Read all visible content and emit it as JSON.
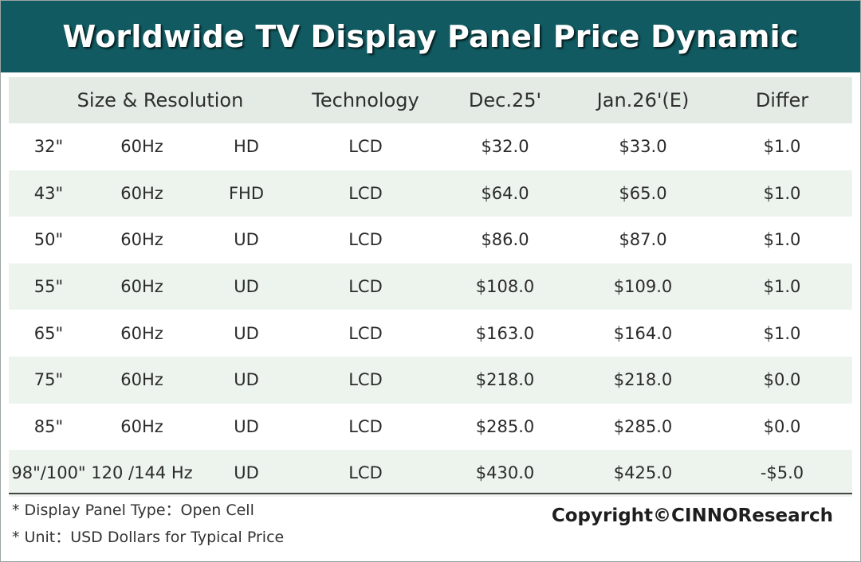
{
  "title": "Worldwide TV Display Panel Price Dynamic",
  "colors": {
    "title_bg": "#115a61",
    "header_bg": "#e3ebe4",
    "stripe_bg": "#edf3ed"
  },
  "chart_data": {
    "type": "table",
    "title": "Worldwide TV Display Panel Price Dynamic",
    "columns": [
      "Size & Resolution",
      "Technology",
      "Dec.25'",
      "Jan.26'(E)",
      "Differ"
    ],
    "rows": [
      {
        "size": "32\"",
        "refresh": "60Hz",
        "resolution": "HD",
        "technology": "LCD",
        "dec25": "$32.0",
        "jan26e": "$33.0",
        "differ": "$1.0"
      },
      {
        "size": "43\"",
        "refresh": "60Hz",
        "resolution": "FHD",
        "technology": "LCD",
        "dec25": "$64.0",
        "jan26e": "$65.0",
        "differ": "$1.0"
      },
      {
        "size": "50\"",
        "refresh": "60Hz",
        "resolution": "UD",
        "technology": "LCD",
        "dec25": "$86.0",
        "jan26e": "$87.0",
        "differ": "$1.0"
      },
      {
        "size": "55\"",
        "refresh": "60Hz",
        "resolution": "UD",
        "technology": "LCD",
        "dec25": "$108.0",
        "jan26e": "$109.0",
        "differ": "$1.0"
      },
      {
        "size": "65\"",
        "refresh": "60Hz",
        "resolution": "UD",
        "technology": "LCD",
        "dec25": "$163.0",
        "jan26e": "$164.0",
        "differ": "$1.0"
      },
      {
        "size": "75\"",
        "refresh": "60Hz",
        "resolution": "UD",
        "technology": "LCD",
        "dec25": "$218.0",
        "jan26e": "$218.0",
        "differ": "$0.0"
      },
      {
        "size": "85\"",
        "refresh": "60Hz",
        "resolution": "UD",
        "technology": "LCD",
        "dec25": "$285.0",
        "jan26e": "$285.0",
        "differ": "$0.0"
      },
      {
        "size": "98\"/100\"",
        "refresh": "120 /144 Hz",
        "resolution": "UD",
        "technology": "LCD",
        "dec25": "$430.0",
        "jan26e": "$425.0",
        "differ": "-$5.0"
      }
    ]
  },
  "notes": [
    "* Display Panel Type：Open Cell",
    "* Unit：USD Dollars for Typical Price"
  ],
  "copyright": "Copyright©CINNOResearch"
}
